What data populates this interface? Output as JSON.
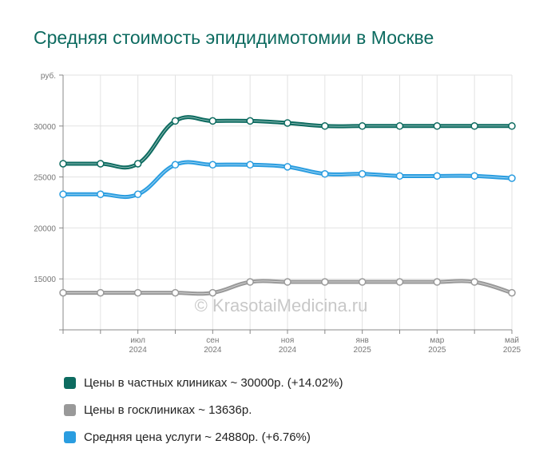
{
  "title": "Средняя стоимость эпидидимотомии в Москве",
  "watermark": "© KrasotaiMedicina.ru",
  "chart_data": {
    "type": "line",
    "ylabel": "руб.",
    "yticks": [
      15000,
      20000,
      25000,
      30000
    ],
    "ylim": [
      10000,
      35000
    ],
    "grid": true,
    "x": [
      "2024-05",
      "2024-06",
      "2024-07",
      "2024-08",
      "2024-09",
      "2024-10",
      "2024-11",
      "2024-12",
      "2025-01",
      "2025-02",
      "2025-03",
      "2025-04",
      "2025-05"
    ],
    "xticks": [
      {
        "month": "июл",
        "year": "2024"
      },
      {
        "month": "сен",
        "year": "2024"
      },
      {
        "month": "ноя",
        "year": "2024"
      },
      {
        "month": "янв",
        "year": "2025"
      },
      {
        "month": "мар",
        "year": "2025"
      },
      {
        "month": "май",
        "year": "2025"
      }
    ],
    "series": [
      {
        "name": "Цены в частных клиниках",
        "color": "#0d6b60",
        "values": [
          26300,
          26300,
          26300,
          30500,
          30500,
          30500,
          30300,
          30000,
          30000,
          30000,
          30000,
          30000,
          30000
        ]
      },
      {
        "name": "Средняя цена услуги",
        "color": "#2a9de0",
        "values": [
          23300,
          23300,
          23300,
          26200,
          26200,
          26200,
          26000,
          25300,
          25300,
          25100,
          25100,
          25100,
          24880
        ]
      },
      {
        "name": "Цены в госклиниках",
        "color": "#999999",
        "values": [
          13636,
          13636,
          13636,
          13636,
          13636,
          14700,
          14700,
          14700,
          14700,
          14700,
          14700,
          14700,
          13636
        ]
      }
    ]
  },
  "legend": [
    {
      "label": "Цены в частных клиниках ~ 30000р. (+14.02%)",
      "color": "#0d6b60"
    },
    {
      "label": "Цены в госклиниках ~ 13636р.",
      "color": "#999999"
    },
    {
      "label": "Средняя цена услуги ~ 24880р. (+6.76%)",
      "color": "#2a9de0"
    }
  ]
}
